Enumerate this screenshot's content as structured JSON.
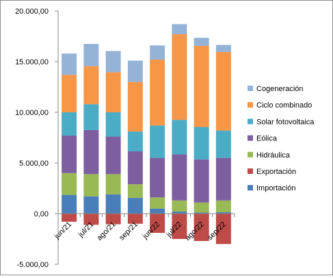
{
  "chart_data": {
    "type": "bar",
    "stacked": true,
    "title": "",
    "xlabel": "",
    "ylabel": "",
    "ylim": [
      -5000,
      20000
    ],
    "ytick_step": 5000,
    "ytick_labels": [
      "-5.000,00",
      "0,00",
      "5.000,00",
      "10.000,00",
      "15.000,00",
      "20.000,00"
    ],
    "grid": false,
    "legend_position": "right",
    "categories": [
      "jun/21",
      "jul/21",
      "ago/21",
      "sep/21",
      "jun/22",
      "jul/22",
      "ago/22",
      "sep/22"
    ],
    "series": [
      {
        "name": "Importación",
        "color": "#4a7ebb",
        "values": [
          1850,
          1700,
          1900,
          1550,
          500,
          200,
          100,
          150
        ]
      },
      {
        "name": "Exportación",
        "color": "#be4b48",
        "values": [
          -800,
          -1100,
          -1050,
          -1000,
          -1900,
          -2500,
          -2700,
          -3000
        ]
      },
      {
        "name": "Hidráulica",
        "color": "#98b954",
        "values": [
          2150,
          2200,
          2000,
          1350,
          1100,
          1100,
          1000,
          1150
        ]
      },
      {
        "name": "Eólica",
        "color": "#7d5fa0",
        "values": [
          3700,
          4350,
          3700,
          3250,
          3900,
          4550,
          4250,
          4200
        ]
      },
      {
        "name": "Solar fotovoltaica",
        "color": "#4bacc6",
        "values": [
          2300,
          2550,
          2400,
          1950,
          3200,
          3400,
          3200,
          2700
        ]
      },
      {
        "name": "Ciclo combinado",
        "color": "#f79646",
        "values": [
          3700,
          3750,
          3950,
          4900,
          6500,
          8450,
          8000,
          7750
        ]
      },
      {
        "name": "Cogeneración",
        "color": "#95b3d7",
        "values": [
          2100,
          2200,
          2100,
          2100,
          1400,
          1000,
          800,
          700
        ]
      }
    ]
  }
}
